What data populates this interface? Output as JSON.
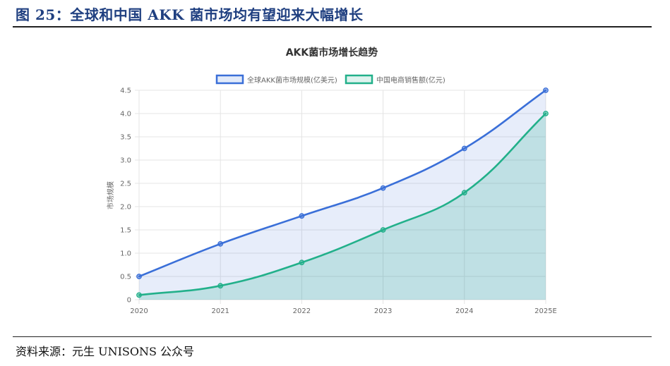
{
  "figure": {
    "title": "图 25：全球和中国 AKK 菌市场均有望迎来大幅增长",
    "source": "资料来源：元生 UNISONS 公众号",
    "title_color": "#1f3f80"
  },
  "chart_data": {
    "type": "area",
    "title": "AKK菌市场增长趋势",
    "categories": [
      "2020",
      "2021",
      "2022",
      "2023",
      "2024",
      "2025E"
    ],
    "series": [
      {
        "name": "全球AKK菌市场规模(亿美元)",
        "values": [
          0.5,
          1.2,
          1.8,
          2.4,
          3.25,
          4.5
        ],
        "color": "#3a6fd8"
      },
      {
        "name": "中国电商销售额(亿元)",
        "values": [
          0.1,
          0.3,
          0.8,
          1.5,
          2.3,
          4.0
        ],
        "color": "#22b08a"
      }
    ],
    "xlabel": "",
    "ylabel": "市场规模",
    "ylim": [
      0,
      4.5
    ],
    "yticks": [
      "0",
      "0.5",
      "1.0",
      "1.5",
      "2.0",
      "2.5",
      "3.0",
      "3.5",
      "4.0",
      "4.5"
    ],
    "grid": true,
    "legend": "top",
    "smooth": true
  }
}
